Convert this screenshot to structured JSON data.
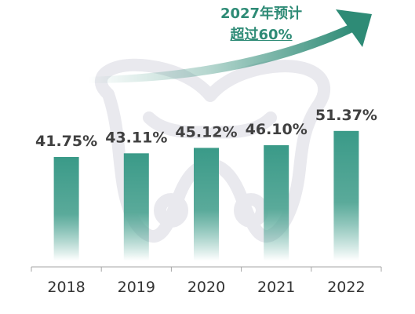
{
  "chart_data": {
    "type": "bar",
    "categories": [
      "2018",
      "2019",
      "2020",
      "2021",
      "2022"
    ],
    "values": [
      41.75,
      43.11,
      45.12,
      46.1,
      51.37
    ],
    "value_labels": [
      "41.75%",
      "43.11%",
      "45.12%",
      "46.10%",
      "51.37%"
    ],
    "unit": "%",
    "annotation": {
      "line1": "2027年预计",
      "line2": "超过60%"
    },
    "bar_color": "#3a9a88",
    "annotation_color": "#2e8b76",
    "grid": false,
    "legend": "none"
  }
}
